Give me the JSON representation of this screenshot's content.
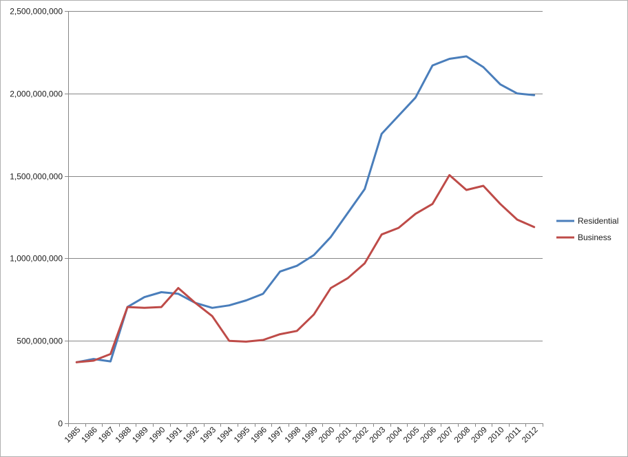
{
  "chart_data": {
    "type": "line",
    "title": "",
    "xlabel": "",
    "ylabel": "",
    "ylim": [
      0,
      2500000000
    ],
    "ytick_values": [
      0,
      500000000,
      1000000000,
      1500000000,
      2000000000,
      2500000000
    ],
    "ytick_labels": [
      "0",
      "500,000,000",
      "1,000,000,000",
      "1,500,000,000",
      "2,000,000,000",
      "2,500,000,000"
    ],
    "grid": "horizontal",
    "legend_position": "right",
    "categories": [
      "1985",
      "1986",
      "1987",
      "1988",
      "1989",
      "1990",
      "1991",
      "1992",
      "1993",
      "1994",
      "1995",
      "1996",
      "1997",
      "1998",
      "1999",
      "2000",
      "2001",
      "2002",
      "2003",
      "2004",
      "2005",
      "2006",
      "2007",
      "2008",
      "2009",
      "2010",
      "2011",
      "2012"
    ],
    "series": [
      {
        "name": "Residential",
        "color": "#4a7ebb",
        "values": [
          370000000,
          390000000,
          375000000,
          705000000,
          765000000,
          795000000,
          785000000,
          730000000,
          700000000,
          715000000,
          745000000,
          785000000,
          920000000,
          955000000,
          1020000000,
          1130000000,
          1275000000,
          1420000000,
          1755000000,
          1865000000,
          1975000000,
          2170000000,
          2210000000,
          2225000000,
          2160000000,
          2055000000,
          2000000000,
          1990000000
        ]
      },
      {
        "name": "Business",
        "color": "#be4b48",
        "values": [
          370000000,
          380000000,
          420000000,
          705000000,
          700000000,
          705000000,
          820000000,
          730000000,
          650000000,
          500000000,
          495000000,
          505000000,
          540000000,
          560000000,
          660000000,
          820000000,
          880000000,
          970000000,
          1145000000,
          1185000000,
          1270000000,
          1330000000,
          1505000000,
          1415000000,
          1440000000,
          1330000000,
          1235000000,
          1190000000
        ]
      }
    ]
  }
}
